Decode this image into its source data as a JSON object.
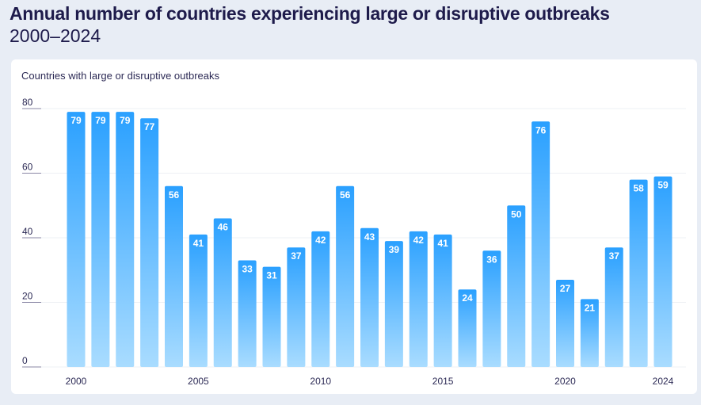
{
  "header": {
    "title": "Annual number of countries experiencing large or disruptive outbreaks",
    "subtitle": "2000–2024"
  },
  "colors": {
    "bar_top": "#2aa0ff",
    "bar_bottom": "#a9dcff",
    "text": "#2c2a55"
  },
  "chart_data": {
    "type": "bar",
    "title": "Annual number of countries experiencing large or disruptive outbreaks",
    "subtitle": "2000–2024",
    "ylabel": "Countries with large or disruptive outbreaks",
    "xlabel": "",
    "categories": [
      2000,
      2001,
      2002,
      2003,
      2004,
      2005,
      2006,
      2007,
      2008,
      2009,
      2010,
      2011,
      2012,
      2013,
      2014,
      2015,
      2016,
      2017,
      2018,
      2019,
      2020,
      2021,
      2022,
      2023,
      2024
    ],
    "values": [
      79,
      79,
      79,
      77,
      56,
      41,
      46,
      33,
      31,
      37,
      42,
      56,
      43,
      39,
      42,
      41,
      24,
      36,
      50,
      76,
      27,
      21,
      37,
      58,
      59
    ],
    "xticks": [
      "2000",
      "2005",
      "2010",
      "2015",
      "2020",
      "2024"
    ],
    "yticks": [
      0,
      20,
      40,
      60,
      80
    ],
    "ylim": [
      0,
      80
    ],
    "grid": true
  }
}
